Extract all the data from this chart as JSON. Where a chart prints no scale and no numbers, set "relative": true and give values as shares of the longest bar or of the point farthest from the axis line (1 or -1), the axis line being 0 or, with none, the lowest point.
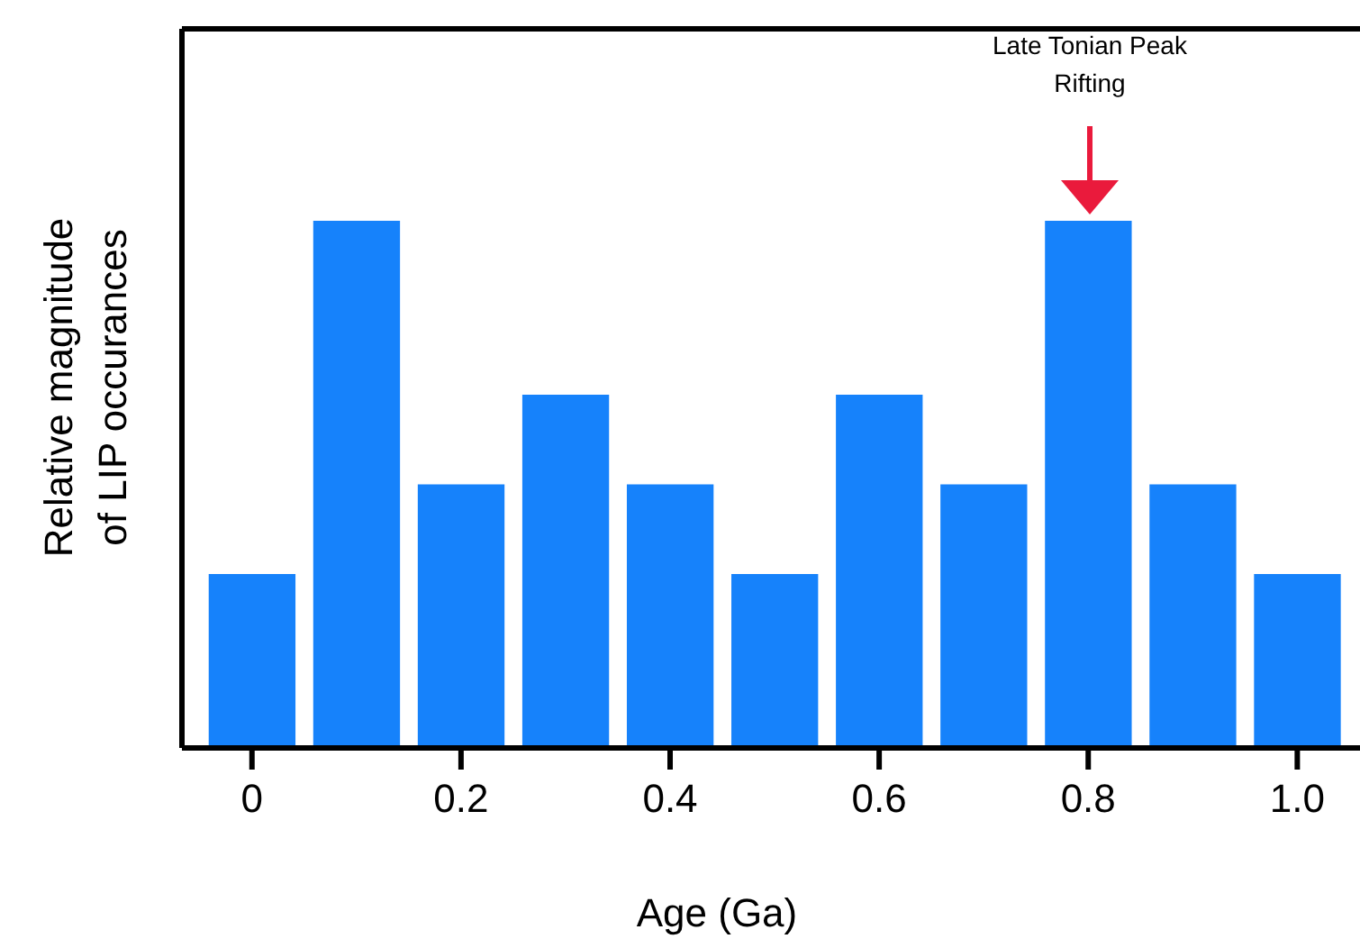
{
  "chart_data": {
    "type": "bar",
    "relative": true,
    "xlabel": "Age (Ga)",
    "ylabel": "Relative magnitude\nof LIP occurances",
    "x": [
      0,
      0.1,
      0.2,
      0.3,
      0.4,
      0.5,
      0.6,
      0.7,
      0.8,
      0.9,
      1.0
    ],
    "values": [
      0.33,
      1,
      0.5,
      0.67,
      0.5,
      0.33,
      0.67,
      0.5,
      1,
      0.5,
      0.33
    ],
    "color": "#1682fb",
    "xlim": [
      -0.067,
      1.06
    ],
    "xticks": [
      0,
      {
        "value": 0.2,
        "label": "0.2"
      },
      {
        "value": 0.4,
        "label": "0.4"
      },
      {
        "value": 0.6,
        "label": "0.6"
      },
      {
        "value": 0.8,
        "label": "0.8"
      },
      {
        "value": 1.0,
        "label": "1.0"
      }
    ],
    "annotations": [
      "Late Tonian Peak\nRifting"
    ],
    "grid": false,
    "legend": false
  }
}
